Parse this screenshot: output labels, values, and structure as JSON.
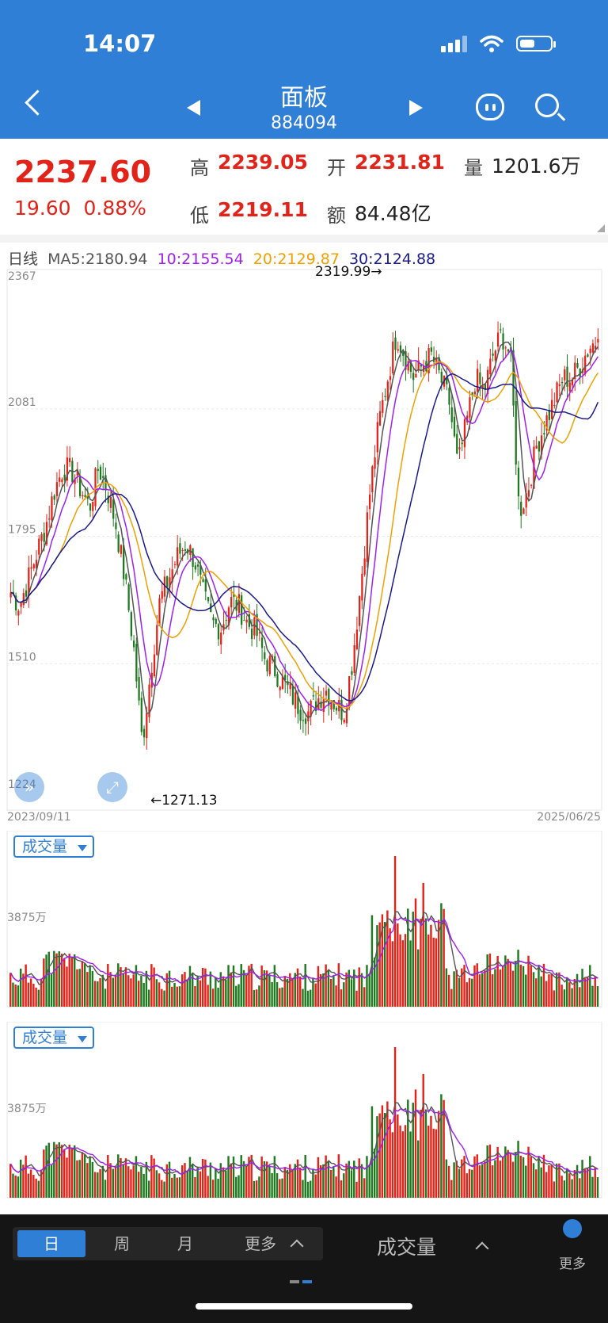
{
  "status_bar": {
    "time": "14:07"
  },
  "header": {
    "title": "面板",
    "code": "884094"
  },
  "quote": {
    "price": "2237.60",
    "change": "19.60",
    "change_pct": "0.88%",
    "high_label": "高",
    "high": "2239.05",
    "open_label": "开",
    "open": "2231.81",
    "volume_label": "量",
    "volume": "1201.6万",
    "low_label": "低",
    "low": "2219.11",
    "amount_label": "额",
    "amount": "84.48亿"
  },
  "ma_legend": {
    "period": "日线",
    "ma5": "MA5:2180.94",
    "ma10": "10:2155.54",
    "ma20": "20:2129.87",
    "ma30": "30:2124.88"
  },
  "colors": {
    "accent": "#2f7fd6",
    "up": "#e2231a",
    "down": "#1e7a1e",
    "ma5": "#555555",
    "ma10": "#a020f0",
    "ma20": "#f0a000",
    "ma30": "#1a1a8c"
  },
  "chart_data": [
    {
      "type": "candlestick",
      "title": "",
      "y_ticks": [
        "2367",
        "2081",
        "1795",
        "1510",
        "1224"
      ],
      "ylim": [
        1224,
        2367
      ],
      "x_start": "2023/09/11",
      "x_end": "2025/06/25",
      "annotations": {
        "max": "2319.99→",
        "min": "←1271.13"
      },
      "series_ma": [
        {
          "name": "MA5",
          "last": 2180.94
        },
        {
          "name": "10",
          "last": 2155.54
        },
        {
          "name": "20",
          "last": 2129.87
        },
        {
          "name": "30",
          "last": 2124.88
        }
      ],
      "approx_close_path": [
        1670,
        1640,
        1700,
        1760,
        1820,
        1900,
        1950,
        1940,
        1900,
        1860,
        1950,
        1900,
        1820,
        1700,
        1550,
        1330,
        1500,
        1650,
        1700,
        1750,
        1780,
        1740,
        1660,
        1600,
        1590,
        1650,
        1640,
        1600,
        1580,
        1520,
        1500,
        1470,
        1440,
        1410,
        1400,
        1430,
        1450,
        1420,
        1400,
        1520,
        1700,
        1900,
        2050,
        2150,
        2250,
        2200,
        2150,
        2180,
        2200,
        2150,
        2100,
        1950,
        2050,
        2150,
        2120,
        2200,
        2250,
        2200,
        1850,
        1900,
        2000,
        2050,
        2100,
        2150,
        2150,
        2180,
        2220,
        2237.6
      ]
    },
    {
      "type": "bar",
      "title": "",
      "label": "成交量",
      "y_tick": "3875万"
    },
    {
      "type": "bar",
      "title": "",
      "label": "成交量",
      "y_tick": "3875万"
    }
  ],
  "bottom_bar": {
    "tabs": [
      "日",
      "周",
      "月",
      "更多"
    ],
    "indicator_label": "成交量",
    "more_label": "更多"
  }
}
